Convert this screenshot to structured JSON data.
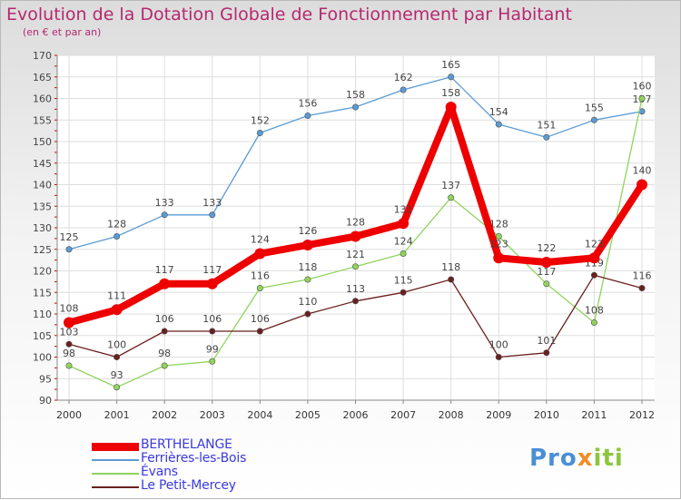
{
  "header": {
    "title": "Evolution de la Dotation Globale de Fonctionnement par Habitant",
    "subtitle": "(en € et par an)"
  },
  "logo": {
    "text_a": "Pro",
    "text_b": "x",
    "text_c": "iti"
  },
  "chart_data": {
    "type": "line",
    "title": "Evolution de la Dotation Globale de Fonctionnement par Habitant",
    "subtitle": "(en € et par an)",
    "xlabel": "",
    "ylabel": "",
    "x": [
      "2000",
      "2001",
      "2002",
      "2003",
      "2004",
      "2005",
      "2006",
      "2007",
      "2008",
      "2009",
      "2010",
      "2011",
      "2012"
    ],
    "ylim": [
      90,
      170
    ],
    "yticks": [
      90,
      95,
      100,
      105,
      110,
      115,
      120,
      125,
      130,
      135,
      140,
      145,
      150,
      155,
      160,
      165,
      170
    ],
    "grid": true,
    "legend_position": "bottom-left",
    "series": [
      {
        "name": "BERTHELANGE",
        "color": "#ee0000",
        "values": [
          108,
          111,
          117,
          117,
          124,
          126,
          128,
          131,
          158,
          123,
          122,
          123,
          140
        ],
        "labels": [
          "108",
          "111",
          "117",
          "117",
          "124",
          "126",
          "128",
          "131",
          "158",
          "123",
          "122",
          "123",
          "140"
        ]
      },
      {
        "name": "Ferrières-les-Bois",
        "color": "#5b9bd5",
        "values": [
          125,
          128,
          133,
          133,
          152,
          156,
          158,
          162,
          165,
          154,
          151,
          155,
          157
        ],
        "labels": [
          "125",
          "128",
          "133",
          "133",
          "152",
          "156",
          "158",
          "162",
          "165",
          "154",
          "151",
          "155",
          "157"
        ]
      },
      {
        "name": "Évans",
        "color": "#8fd45b",
        "values": [
          98,
          93,
          98,
          99,
          116,
          118,
          121,
          124,
          137,
          128,
          117,
          108,
          160
        ],
        "labels": [
          "98",
          "93",
          "98",
          "99",
          "116",
          "118",
          "121",
          "124",
          "137",
          "128",
          "117",
          "108",
          "160"
        ]
      },
      {
        "name": "Le Petit-Mercey",
        "color": "#6b1f1f",
        "values": [
          103,
          100,
          106,
          106,
          106,
          110,
          113,
          115,
          118,
          100,
          101,
          119,
          116
        ],
        "labels": [
          "103",
          "100",
          "106",
          "106",
          "106",
          "110",
          "113",
          "115",
          "118",
          "100",
          "101",
          "119",
          "116"
        ]
      }
    ]
  }
}
